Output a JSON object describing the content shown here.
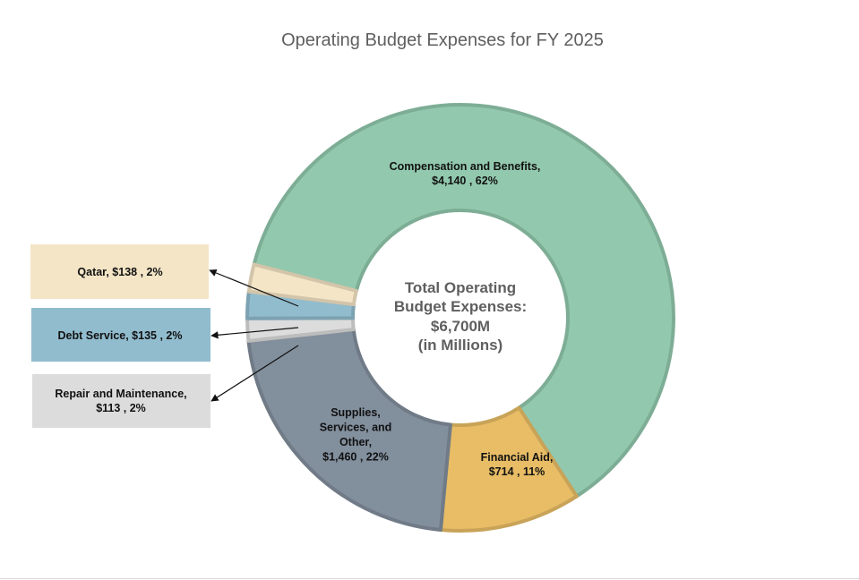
{
  "chart_data": {
    "type": "pie",
    "subtype": "donut",
    "title": "Operating Budget Expenses for FY 2025",
    "center_text": [
      "Total Operating",
      "Budget Expenses:",
      "$6,700M",
      "(in Millions)"
    ],
    "units": "Millions USD",
    "total": 6700,
    "slices": [
      {
        "name": "Compensation and Benefits",
        "value": 4140,
        "percent": 62,
        "color": "#92c9ae",
        "label_lines": [
          "Compensation and Benefits,",
          "$4,140 , 62%"
        ]
      },
      {
        "name": "Financial Aid",
        "value": 714,
        "percent": 11,
        "color": "#e8bd66",
        "label_lines": [
          "Financial Aid,",
          "$714 , 11%"
        ]
      },
      {
        "name": "Supplies, Services, and Other",
        "value": 1460,
        "percent": 22,
        "color": "#828f9d",
        "label_lines": [
          "Supplies,",
          "Services, and",
          "Other,",
          "$1,460 , 22%"
        ]
      },
      {
        "name": "Repair and Maintenance",
        "value": 113,
        "percent": 2,
        "color": "#dcdcdc",
        "label_lines": [
          "Repair and Maintenance,",
          "$113 , 2%"
        ]
      },
      {
        "name": "Debt Service",
        "value": 135,
        "percent": 2,
        "color": "#91bcce",
        "label_lines": [
          "Debt Service,  $135 , 2%"
        ]
      },
      {
        "name": "Qatar",
        "value": 138,
        "percent": 2,
        "color": "#f4e5c6",
        "label_lines": [
          "Qatar,  $138 , 2%"
        ]
      }
    ]
  }
}
